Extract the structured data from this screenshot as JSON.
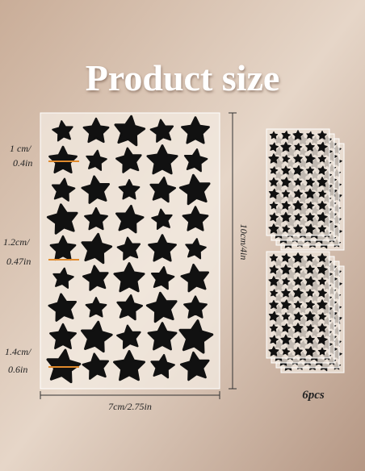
{
  "header": {
    "title": "Product size"
  },
  "sizes": [
    {
      "cm": "1 cm/",
      "inch": "0.4in"
    },
    {
      "cm": "1.2cm/",
      "inch": "0.47in"
    },
    {
      "cm": "1.4cm/",
      "inch": "0.6in"
    }
  ],
  "height_label": "10cm/4in",
  "width_label": "7cm/2.75in",
  "count_label": "6pcs"
}
